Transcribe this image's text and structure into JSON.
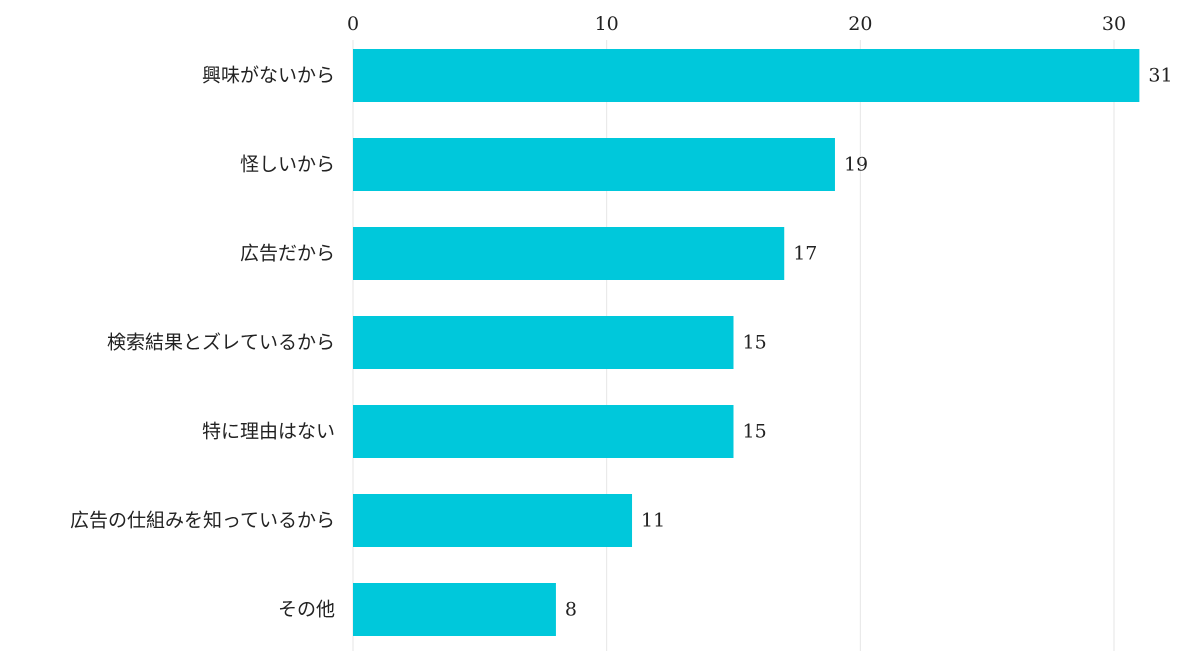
{
  "chart_data": {
    "type": "bar",
    "orientation": "horizontal",
    "categories": [
      "興味がないから",
      "怪しいから",
      "広告だから",
      "検索結果とズレているから",
      "特に理由はない",
      "広告の仕組みを知っているから",
      "その他"
    ],
    "values": [
      31,
      19,
      17,
      15,
      15,
      11,
      8
    ],
    "xlim": [
      0,
      30
    ],
    "xticks": [
      0,
      10,
      20,
      30
    ],
    "x_axis_position": "top",
    "grid": true,
    "legend": "none",
    "data_labels": true,
    "bar_color": "#00c8db",
    "title": "",
    "xlabel": "",
    "ylabel": ""
  }
}
